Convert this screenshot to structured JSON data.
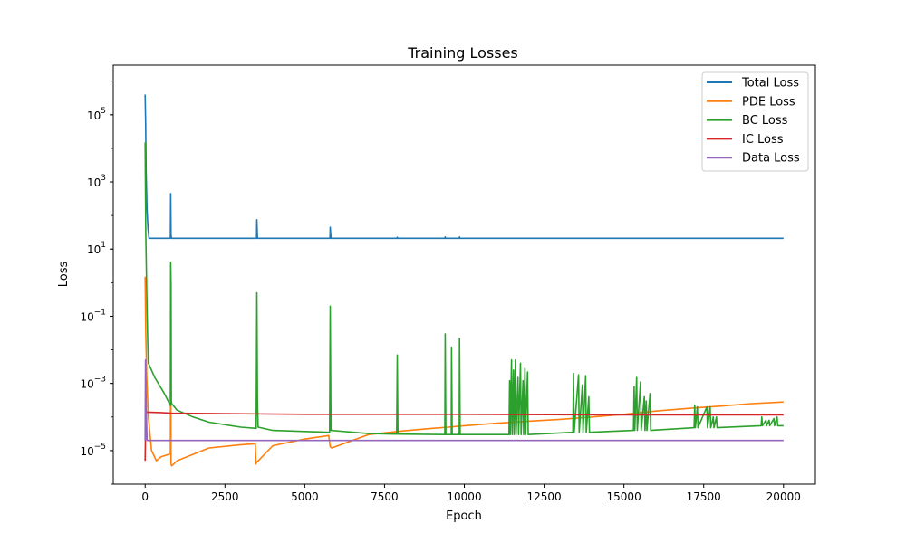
{
  "chart_data": {
    "type": "line",
    "title": "Training Losses",
    "xlabel": "Epoch",
    "ylabel": "Loss",
    "yscale": "log",
    "xlim": [
      -1000,
      21000
    ],
    "ylim": [
      1e-06,
      3000000.0
    ],
    "x_ticks": [
      0,
      2500,
      5000,
      7500,
      10000,
      12500,
      15000,
      17500,
      20000
    ],
    "x_tick_labels": [
      "0",
      "2500",
      "5000",
      "7500",
      "10000",
      "12500",
      "15000",
      "17500",
      "20000"
    ],
    "y_ticks": [
      1e-05,
      0.001,
      0.1,
      10,
      1000,
      100000
    ],
    "y_tick_labels": [
      {
        "base": "10",
        "exp": "−5"
      },
      {
        "base": "10",
        "exp": "−3"
      },
      {
        "base": "10",
        "exp": "−1"
      },
      {
        "base": "10",
        "exp": "1"
      },
      {
        "base": "10",
        "exp": "3"
      },
      {
        "base": "10",
        "exp": "5"
      }
    ],
    "grid": false,
    "legend_position": "upper right",
    "series": [
      {
        "name": "Total Loss",
        "color": "#1f77b4",
        "points": [
          [
            0,
            400000
          ],
          [
            15,
            50000
          ],
          [
            30,
            2000
          ],
          [
            60,
            150
          ],
          [
            90,
            40
          ],
          [
            120,
            21
          ],
          [
            500,
            21
          ],
          [
            790,
            21
          ],
          [
            800,
            450
          ],
          [
            810,
            25
          ],
          [
            830,
            21
          ],
          [
            3490,
            21
          ],
          [
            3500,
            75
          ],
          [
            3520,
            21
          ],
          [
            5790,
            21
          ],
          [
            5800,
            45
          ],
          [
            5820,
            21
          ],
          [
            7890,
            21
          ],
          [
            7900,
            22.5
          ],
          [
            7910,
            21
          ],
          [
            9390,
            21
          ],
          [
            9400,
            23
          ],
          [
            9410,
            21
          ],
          [
            9840,
            21
          ],
          [
            9850,
            23
          ],
          [
            9860,
            21
          ],
          [
            20000,
            21
          ]
        ]
      },
      {
        "name": "PDE Loss",
        "color": "#ff7f0e",
        "points": [
          [
            0,
            1.5
          ],
          [
            20,
            0.03
          ],
          [
            50,
            0.0015
          ],
          [
            100,
            0.0001
          ],
          [
            200,
            1e-05
          ],
          [
            350,
            5e-06
          ],
          [
            500,
            6.5e-06
          ],
          [
            700,
            7.5e-06
          ],
          [
            790,
            8e-06
          ],
          [
            800,
            0.1
          ],
          [
            810,
            4e-06
          ],
          [
            830,
            3.5e-06
          ],
          [
            1000,
            5e-06
          ],
          [
            2000,
            1.2e-05
          ],
          [
            3000,
            1.5e-05
          ],
          [
            3450,
            1.6e-05
          ],
          [
            3470,
            4e-06
          ],
          [
            3500,
            4.5e-06
          ],
          [
            4000,
            1.4e-05
          ],
          [
            5000,
            2.2e-05
          ],
          [
            5750,
            2.8e-05
          ],
          [
            5800,
            1.3e-05
          ],
          [
            5850,
            1.2e-05
          ],
          [
            7000,
            3e-05
          ],
          [
            8000,
            3.8e-05
          ],
          [
            9000,
            4.6e-05
          ],
          [
            9500,
            5e-05
          ],
          [
            10000,
            5.5e-05
          ],
          [
            11000,
            6.5e-05
          ],
          [
            12000,
            7.5e-05
          ],
          [
            13000,
            8.5e-05
          ],
          [
            14000,
            0.0001
          ],
          [
            15000,
            0.00012
          ],
          [
            16000,
            0.00015
          ],
          [
            17000,
            0.00018
          ],
          [
            18000,
            0.00021
          ],
          [
            19000,
            0.00025
          ],
          [
            20000,
            0.00028
          ]
        ]
      },
      {
        "name": "BC Loss",
        "color": "#2ca02c",
        "points": [
          [
            0,
            15000
          ],
          [
            20,
            30
          ],
          [
            50,
            0.5
          ],
          [
            80,
            0.02
          ],
          [
            100,
            0.004
          ],
          [
            300,
            0.0015
          ],
          [
            600,
            0.0005
          ],
          [
            790,
            0.00022
          ],
          [
            800,
            4
          ],
          [
            810,
            0.8
          ],
          [
            820,
            0.0003
          ],
          [
            830,
            0.00025
          ],
          [
            1000,
            0.00016
          ],
          [
            1500,
            0.0001
          ],
          [
            2000,
            7e-05
          ],
          [
            3000,
            5e-05
          ],
          [
            3480,
            4.6e-05
          ],
          [
            3500,
            0.5
          ],
          [
            3520,
            0.0003
          ],
          [
            3540,
            5e-05
          ],
          [
            4000,
            4e-05
          ],
          [
            5000,
            3.7e-05
          ],
          [
            5780,
            3.5e-05
          ],
          [
            5800,
            0.2
          ],
          [
            5820,
            4e-05
          ],
          [
            7000,
            3.2e-05
          ],
          [
            7880,
            3.1e-05
          ],
          [
            7900,
            0.007
          ],
          [
            7920,
            3.1e-05
          ],
          [
            9390,
            3e-05
          ],
          [
            9400,
            0.03
          ],
          [
            9420,
            3e-05
          ],
          [
            9590,
            3e-05
          ],
          [
            9600,
            0.012
          ],
          [
            9620,
            3e-05
          ],
          [
            9840,
            3e-05
          ],
          [
            9850,
            0.022
          ],
          [
            9870,
            3e-05
          ],
          [
            11400,
            3e-05
          ],
          [
            11420,
            0.0012
          ],
          [
            11440,
            3e-05
          ],
          [
            11480,
            0.005
          ],
          [
            11500,
            3e-05
          ],
          [
            11540,
            0.0025
          ],
          [
            11560,
            3e-05
          ],
          [
            11600,
            0.005
          ],
          [
            11620,
            3e-05
          ],
          [
            11680,
            0.0015
          ],
          [
            11700,
            3e-05
          ],
          [
            11760,
            0.004
          ],
          [
            11780,
            3e-05
          ],
          [
            11840,
            0.0012
          ],
          [
            11860,
            3e-05
          ],
          [
            11900,
            0.0028
          ],
          [
            11920,
            3e-05
          ],
          [
            11980,
            0.0022
          ],
          [
            12000,
            3e-05
          ],
          [
            13400,
            3.5e-05
          ],
          [
            13420,
            0.002
          ],
          [
            13440,
            3.5e-05
          ],
          [
            13580,
            0.0018
          ],
          [
            13600,
            3.5e-05
          ],
          [
            13700,
            0.0009
          ],
          [
            13720,
            3.5e-05
          ],
          [
            13800,
            0.0017
          ],
          [
            13820,
            3.5e-05
          ],
          [
            13900,
            0.0004
          ],
          [
            13920,
            3.5e-05
          ],
          [
            15300,
            4e-05
          ],
          [
            15320,
            0.0008
          ],
          [
            15340,
            4e-05
          ],
          [
            15400,
            0.0015
          ],
          [
            15420,
            4e-05
          ],
          [
            15520,
            0.0011
          ],
          [
            15540,
            4e-05
          ],
          [
            15640,
            0.0004
          ],
          [
            15660,
            4e-05
          ],
          [
            15700,
            0.0003
          ],
          [
            15720,
            4e-05
          ],
          [
            15820,
            0.0005
          ],
          [
            15840,
            4e-05
          ],
          [
            17200,
            4.8e-05
          ],
          [
            17220,
            0.00022
          ],
          [
            17240,
            4.8e-05
          ],
          [
            17300,
            0.0002
          ],
          [
            17320,
            4.8e-05
          ],
          [
            17600,
            0.0002
          ],
          [
            17620,
            4.8e-05
          ],
          [
            17700,
            0.0002
          ],
          [
            17720,
            4.8e-05
          ],
          [
            17800,
            0.0001
          ],
          [
            17820,
            4.8e-05
          ],
          [
            17900,
            0.0001
          ],
          [
            17920,
            4.8e-05
          ],
          [
            19300,
            5.5e-05
          ],
          [
            19320,
            0.0001
          ],
          [
            19340,
            5.5e-05
          ],
          [
            19450,
            8e-05
          ],
          [
            19470,
            5.5e-05
          ],
          [
            19550,
            8e-05
          ],
          [
            19570,
            5.5e-05
          ],
          [
            19700,
            9e-05
          ],
          [
            19720,
            5.5e-05
          ],
          [
            19800,
            0.0001
          ],
          [
            19820,
            5.5e-05
          ],
          [
            20000,
            5.5e-05
          ]
        ]
      },
      {
        "name": "IC Loss",
        "color": "#d62728",
        "points": [
          [
            0,
            5e-06
          ],
          [
            20,
            0.00012
          ],
          [
            50,
            0.00014
          ],
          [
            500,
            0.000135
          ],
          [
            800,
            0.00013
          ],
          [
            5000,
            0.00012
          ],
          [
            10000,
            0.00012
          ],
          [
            15000,
            0.000115
          ],
          [
            20000,
            0.000115
          ]
        ]
      },
      {
        "name": "Data Loss",
        "color": "#9467bd",
        "points": [
          [
            0,
            2e-05
          ],
          [
            10,
            0.005
          ],
          [
            30,
            0.0003
          ],
          [
            60,
            2e-05
          ],
          [
            20000,
            2e-05
          ]
        ]
      }
    ]
  }
}
